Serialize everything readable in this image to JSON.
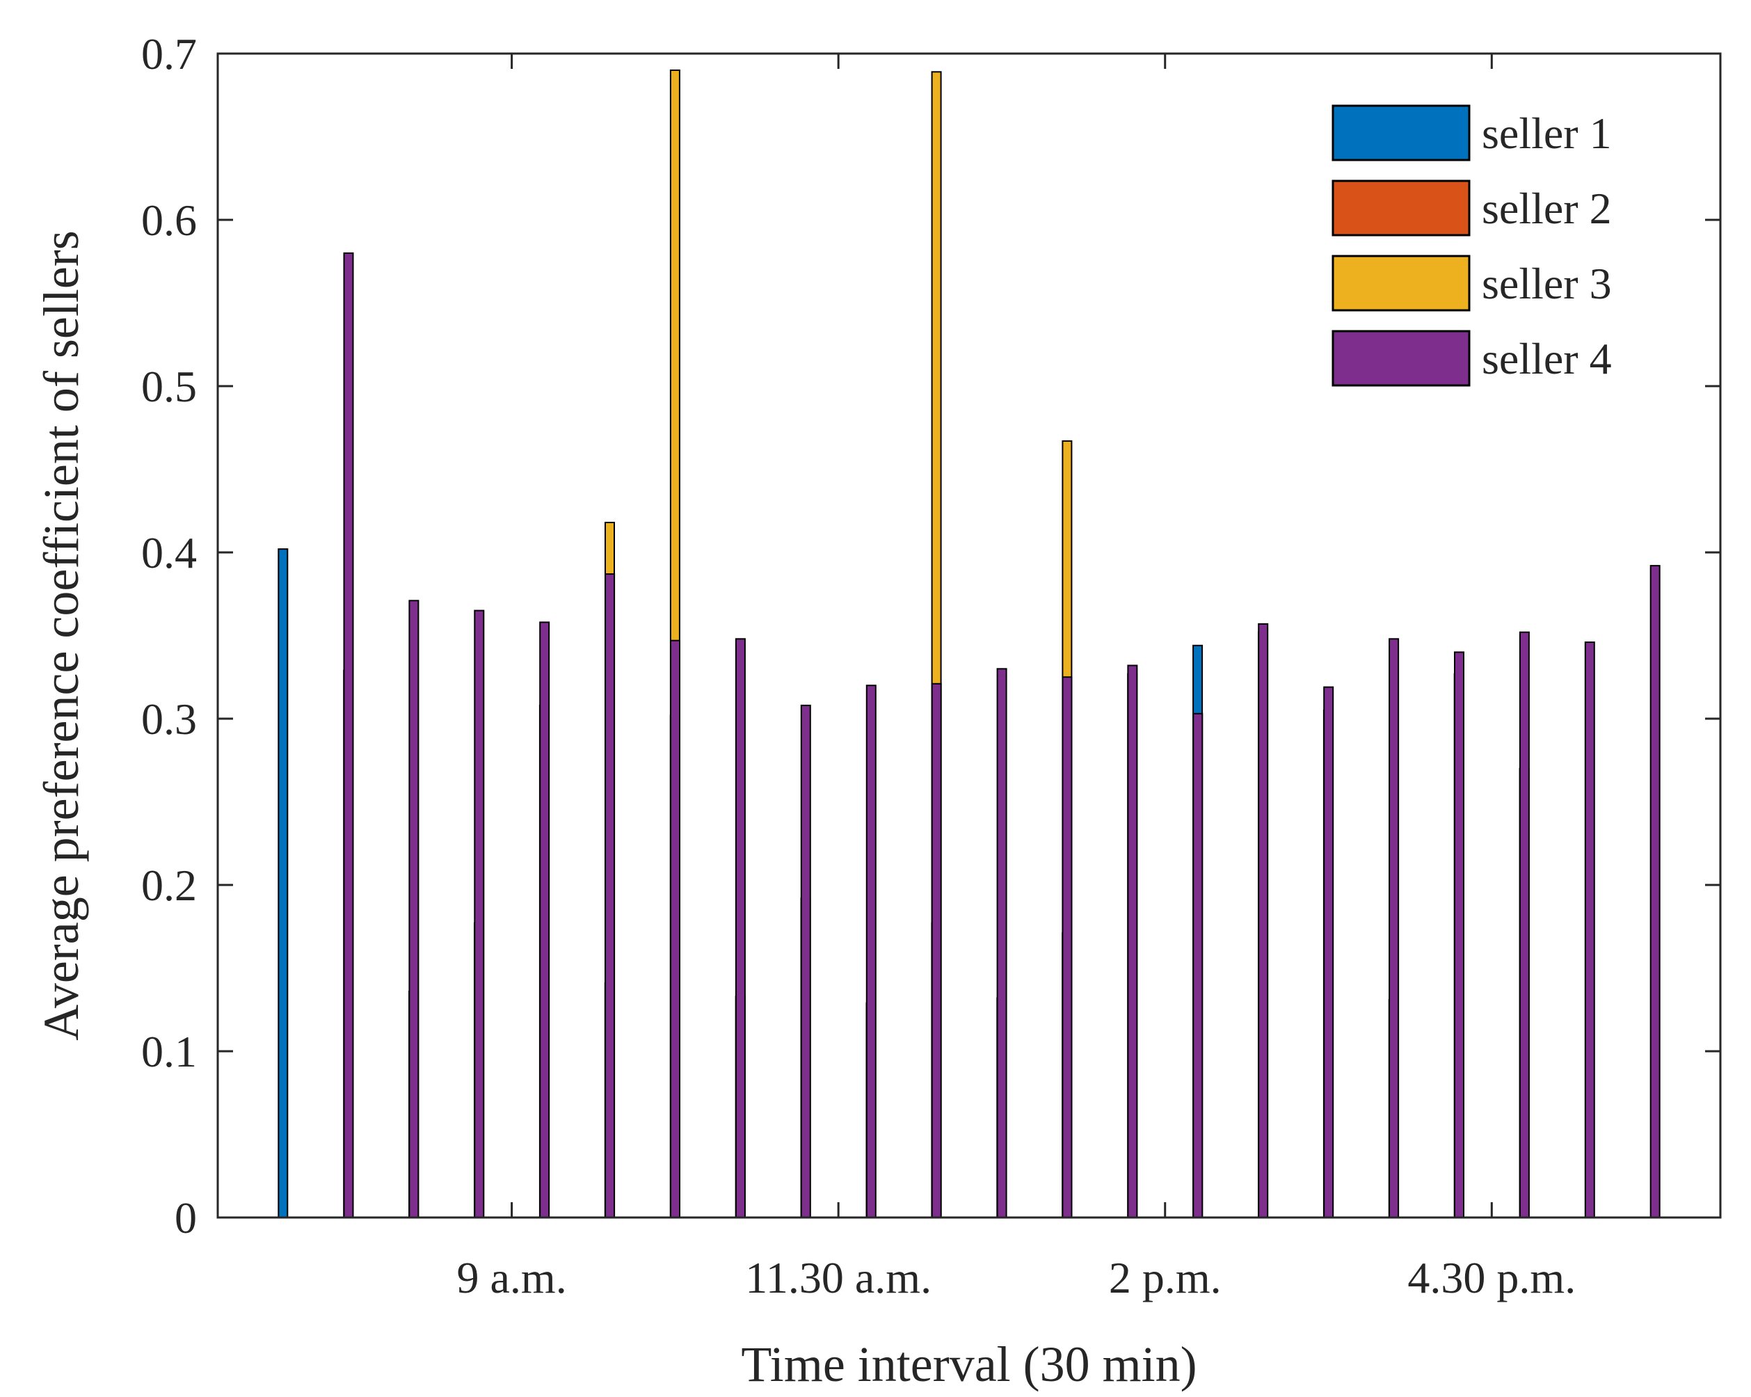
{
  "chart_data": {
    "type": "bar",
    "title": "",
    "xlabel": "Time interval (30 min)",
    "ylabel": "Average preference coefficient of sellers",
    "ylim": [
      0,
      0.7
    ],
    "yticks": [
      0,
      0.1,
      0.2,
      0.3,
      0.4,
      0.5,
      0.6,
      0.7
    ],
    "ytick_labels": [
      "0",
      "0.1",
      "0.2",
      "0.3",
      "0.4",
      "0.5",
      "0.6",
      "0.7"
    ],
    "xlim": [
      0.5,
      23.5
    ],
    "xticks": [
      5,
      10,
      15,
      20
    ],
    "xtick_labels": [
      "9 a.m.",
      "11.30 a.m.",
      "2 p.m.",
      "4.30 p.m."
    ],
    "categories": [
      1,
      2,
      3,
      4,
      5,
      6,
      7,
      8,
      9,
      10,
      11,
      12,
      13,
      14,
      15,
      16,
      17,
      18,
      19,
      20,
      21,
      22,
      23
    ],
    "grid": false,
    "legend_position": "top-right",
    "series": [
      {
        "name": "seller 1",
        "color": "#0072BD",
        "values": [
          0,
          0,
          0.402,
          0.329,
          0.136,
          0.177,
          0.308,
          0.141,
          0.302,
          0.133,
          0.192,
          0.129,
          0.177,
          0.132,
          0.171,
          0.327,
          0.344,
          0.352,
          0.305,
          0.131,
          0.327,
          0.27,
          0
        ]
      },
      {
        "name": "seller 2",
        "color": "#D95319",
        "values": [
          0,
          0,
          0,
          0,
          0,
          0,
          0,
          0,
          0,
          0,
          0,
          0,
          0,
          0,
          0,
          0,
          0,
          0,
          0,
          0,
          0,
          0,
          0
        ]
      },
      {
        "name": "seller 3",
        "color": "#EDB120",
        "values": [
          0,
          0,
          0,
          0,
          0,
          0.418,
          0.69,
          0,
          0,
          0,
          0.689,
          0,
          0.467,
          0,
          0,
          0,
          0,
          0,
          0,
          0,
          0,
          0,
          0
        ]
      },
      {
        "name": "seller 4",
        "color": "#7E2F8E",
        "values": [
          0.58,
          0.371,
          0.365,
          0.358,
          0.387,
          0.347,
          0.348,
          0.308,
          0.32,
          0.321,
          0.33,
          0.325,
          0.332,
          0.303,
          0.357,
          0.319,
          0.348,
          0.34,
          0.352,
          0.346,
          0.392,
          0,
          0
        ]
      }
    ]
  }
}
